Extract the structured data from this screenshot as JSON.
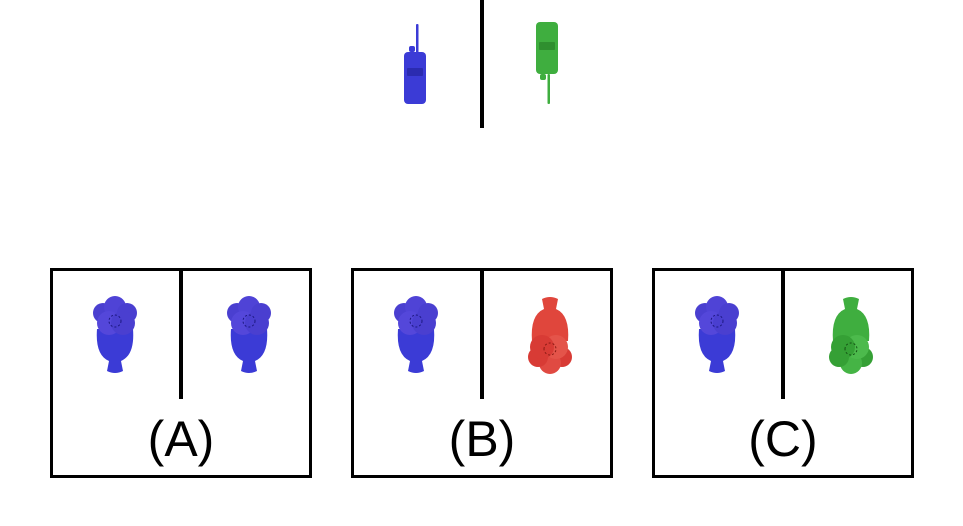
{
  "colors": {
    "blue": "#3b3bd6",
    "green": "#3fae3f",
    "red": "#e0463c",
    "line": "#000000"
  },
  "question": {
    "left_item": {
      "icon": "radio-icon",
      "color": "blue",
      "orientation": "upright"
    },
    "right_item": {
      "icon": "radio-icon",
      "color": "green",
      "orientation": "upside-down"
    }
  },
  "options": [
    {
      "label": "(A)",
      "left": {
        "icon": "flower-bouquet-icon",
        "color": "blue",
        "orientation": "upright"
      },
      "right": {
        "icon": "flower-bouquet-icon",
        "color": "blue",
        "orientation": "upright"
      }
    },
    {
      "label": "(B)",
      "left": {
        "icon": "flower-bouquet-icon",
        "color": "blue",
        "orientation": "upright"
      },
      "right": {
        "icon": "flower-bouquet-icon",
        "color": "red",
        "orientation": "upside-down"
      }
    },
    {
      "label": "(C)",
      "left": {
        "icon": "flower-bouquet-icon",
        "color": "blue",
        "orientation": "upright"
      },
      "right": {
        "icon": "flower-bouquet-icon",
        "color": "green",
        "orientation": "upside-down"
      }
    }
  ]
}
